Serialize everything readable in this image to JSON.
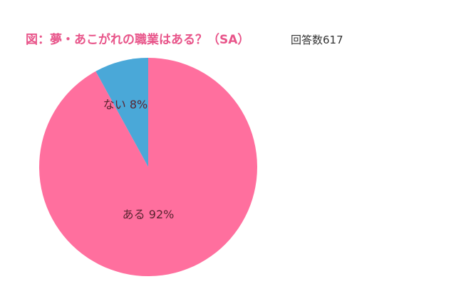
{
  "chart_data": {
    "type": "pie",
    "title": "図：夢・あこがれの職業はある？（SA）",
    "subtitle": "回答数617",
    "start_angle": "12 o'clock",
    "direction": "clockwise",
    "slices": [
      {
        "name": "ある",
        "value": 92,
        "label": "ある 92%",
        "color": "#ff6f9e"
      },
      {
        "name": "ない",
        "value": 8,
        "label": "ない 8%",
        "color": "#4aa8d8"
      }
    ]
  },
  "colors": {
    "title": "#e8558a",
    "subtitle": "#333333",
    "label": "#5a2430",
    "background": "#ffffff"
  }
}
